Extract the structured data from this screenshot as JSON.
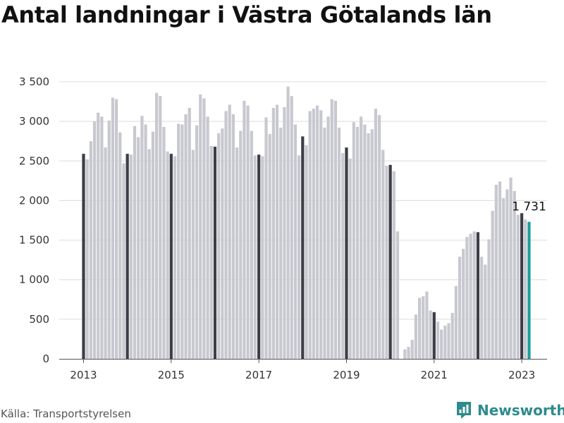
{
  "title": "Antal landningar i Västra Götalands län",
  "source": "Källa: Transportstyrelsen",
  "brand": {
    "name": "Newsworthy",
    "icon": "newsworthy-logo-icon",
    "color": "#2e8b8b"
  },
  "chart_data": {
    "type": "bar",
    "title": "Antal landningar i Västra Götalands län",
    "xlabel": "",
    "ylabel": "",
    "start": "2013-01",
    "ylim": [
      0,
      3500
    ],
    "yticks": [
      0,
      500,
      1000,
      1500,
      2000,
      2500,
      3000,
      3500
    ],
    "ytick_labels": [
      "0",
      "500",
      "1 000",
      "1 500",
      "2 000",
      "2 500",
      "3 000",
      "3 500"
    ],
    "xticks": [
      "2013",
      "2015",
      "2017",
      "2019",
      "2021",
      "2023"
    ],
    "grid": true,
    "colors": {
      "bar": "#c8c8d0",
      "january": "#3d3d48",
      "latest": "#1a9e9e"
    },
    "highlight_label": "1 731",
    "values": [
      2590,
      2520,
      2750,
      3000,
      3110,
      3060,
      2670,
      3010,
      3300,
      3280,
      2860,
      2470,
      2590,
      2580,
      2940,
      2800,
      3070,
      2960,
      2650,
      2870,
      3360,
      3320,
      2930,
      2620,
      2590,
      2560,
      2970,
      2960,
      3090,
      3170,
      2640,
      2950,
      3340,
      3290,
      3060,
      2690,
      2680,
      2850,
      2910,
      3130,
      3210,
      3090,
      2670,
      2880,
      3260,
      3200,
      2880,
      2570,
      2580,
      2560,
      3050,
      2840,
      3170,
      3210,
      2920,
      3180,
      3440,
      3320,
      2960,
      2570,
      2810,
      2700,
      3130,
      3160,
      3200,
      3140,
      2920,
      3060,
      3280,
      3260,
      2920,
      2600,
      2670,
      2530,
      2990,
      2930,
      3060,
      2960,
      2850,
      2900,
      3160,
      3080,
      2640,
      2440,
      2450,
      2370,
      1610,
      0,
      120,
      150,
      240,
      560,
      770,
      790,
      850,
      610,
      590,
      470,
      370,
      420,
      450,
      580,
      920,
      1290,
      1390,
      1540,
      1580,
      1610,
      1600,
      1290,
      1190,
      1510,
      1870,
      2200,
      2240,
      2030,
      2140,
      2290,
      2120,
      1820,
      1840,
      1761,
      1731
    ]
  }
}
